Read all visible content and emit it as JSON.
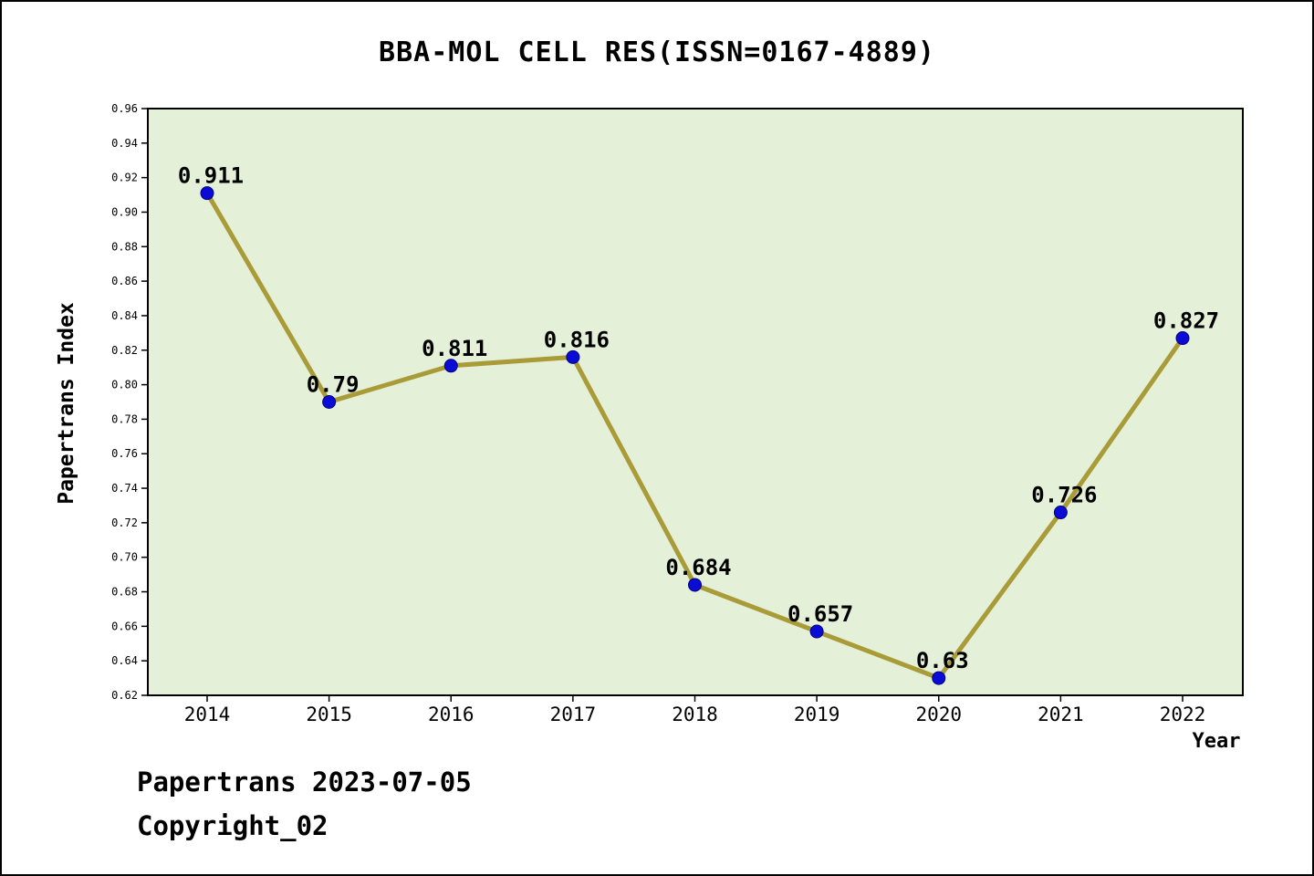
{
  "chart_data": {
    "type": "line",
    "title": "BBA-MOL CELL RES(ISSN=0167-4889)",
    "xlabel": "Year",
    "ylabel": "Papertrans Index",
    "categories": [
      "2014",
      "2015",
      "2016",
      "2017",
      "2018",
      "2019",
      "2020",
      "2021",
      "2022"
    ],
    "values": [
      0.911,
      0.79,
      0.811,
      0.816,
      0.684,
      0.657,
      0.63,
      0.726,
      0.827
    ],
    "point_labels": [
      "0.911",
      "0.79",
      "0.811",
      "0.816",
      "0.684",
      "0.657",
      "0.63",
      "0.726",
      "0.827"
    ],
    "ylim": [
      0.62,
      0.96
    ],
    "y_ticks": [
      0.62,
      0.64,
      0.66,
      0.68,
      0.7,
      0.72,
      0.74,
      0.76,
      0.78,
      0.8,
      0.82,
      0.84,
      0.86,
      0.88,
      0.9,
      0.92,
      0.94,
      0.96
    ],
    "grid": false,
    "legend": "none",
    "colors": {
      "line": "#a89b38",
      "marker": "#0b0bd6",
      "marker_edge": "#000080",
      "plot_bg": "#e4f0d7",
      "frame": "#000000"
    }
  },
  "footer": {
    "line1": "Papertrans 2023-07-05",
    "line2": "Copyright_02"
  }
}
